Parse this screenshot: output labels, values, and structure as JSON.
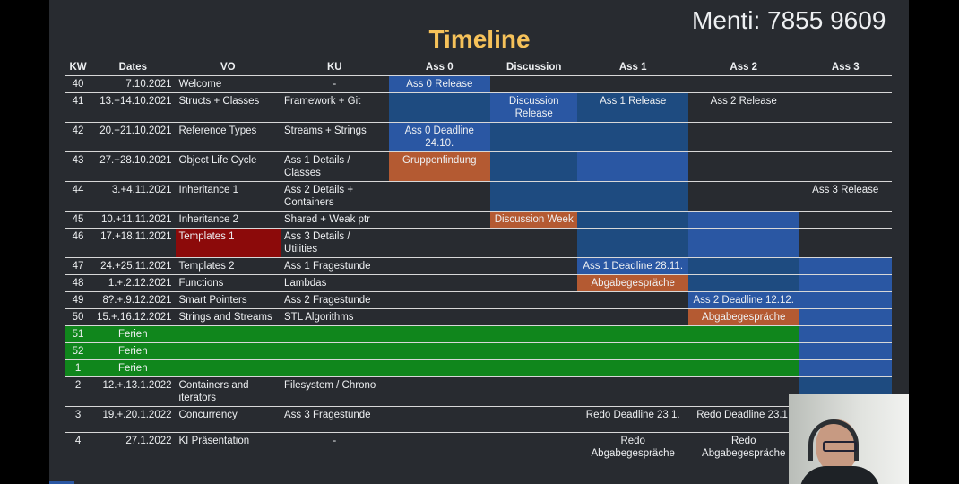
{
  "menti": "Menti: 7855 9609",
  "title": "Timeline",
  "headers": [
    "KW",
    "Dates",
    "VO",
    "KU",
    "Ass 0",
    "Discussion",
    "Ass 1",
    "Ass 2",
    "Ass 3"
  ],
  "rows": [
    {
      "kw": "40",
      "dates": "7.10.2021",
      "vo": "Welcome",
      "ku": "-",
      "ass0": "Ass 0 Release",
      "disc": "",
      "ass1": "",
      "ass2": "",
      "ass3": ""
    },
    {
      "kw": "41",
      "dates": "13.+14.10.2021",
      "vo": "Structs + Classes",
      "ku": "Framework + Git",
      "ass0": "",
      "disc": "Discussion Release",
      "ass1": "Ass 1 Release",
      "ass2": "Ass 2 Release",
      "ass3": ""
    },
    {
      "kw": "42",
      "dates": "20.+21.10.2021",
      "vo": "Reference Types",
      "ku": "Streams + Strings",
      "ass0": "Ass 0 Deadline 24.10.",
      "disc": "",
      "ass1": "",
      "ass2": "",
      "ass3": ""
    },
    {
      "kw": "43",
      "dates": "27.+28.10.2021",
      "vo": "Object Life Cycle",
      "ku": "Ass 1 Details / Classes",
      "ass0": "Gruppenfindung",
      "disc": "",
      "ass1": "",
      "ass2": "",
      "ass3": ""
    },
    {
      "kw": "44",
      "dates": "3.+4.11.2021",
      "vo": "Inheritance 1",
      "ku": "Ass 2 Details + Containers",
      "ass0": "",
      "disc": "",
      "ass1": "",
      "ass2": "",
      "ass3": "Ass 3 Release"
    },
    {
      "kw": "45",
      "dates": "10.+11.11.2021",
      "vo": "Inheritance 2",
      "ku": "Shared + Weak ptr",
      "ass0": "",
      "disc": "Discussion Week",
      "ass1": "",
      "ass2": "",
      "ass3": ""
    },
    {
      "kw": "46",
      "dates": "17.+18.11.2021",
      "vo": "Templates 1",
      "ku": "Ass 3 Details / Utilities",
      "ass0": "",
      "disc": "",
      "ass1": "",
      "ass2": "",
      "ass3": ""
    },
    {
      "kw": "47",
      "dates": "24.+25.11.2021",
      "vo": "Templates 2",
      "ku": "Ass 1 Fragestunde",
      "ass0": "",
      "disc": "",
      "ass1": "Ass 1 Deadline 28.11.",
      "ass2": "",
      "ass3": ""
    },
    {
      "kw": "48",
      "dates": "1.+.2.12.2021",
      "vo": "Functions",
      "ku": "Lambdas",
      "ass0": "",
      "disc": "",
      "ass1": "Abgabegespräche",
      "ass2": "",
      "ass3": ""
    },
    {
      "kw": "49",
      "dates": "8?.+.9.12.2021",
      "vo": "Smart Pointers",
      "ku": "Ass 2 Fragestunde",
      "ass0": "",
      "disc": "",
      "ass1": "",
      "ass2": "Ass 2 Deadline 12.12.",
      "ass3": ""
    },
    {
      "kw": "50",
      "dates": "15.+.16.12.2021",
      "vo": "Strings and Streams",
      "ku": "STL Algorithms",
      "ass0": "",
      "disc": "",
      "ass1": "",
      "ass2": "Abgabegespräche",
      "ass3": ""
    },
    {
      "kw": "51",
      "dates": "Ferien"
    },
    {
      "kw": "52",
      "dates": "Ferien"
    },
    {
      "kw": "1",
      "dates": "Ferien"
    },
    {
      "kw": "2",
      "dates": "12.+.13.1.2022",
      "vo": "Containers and iterators",
      "ku": "Filesystem / Chrono",
      "ass0": "",
      "disc": "",
      "ass1": "",
      "ass2": "",
      "ass3": ""
    },
    {
      "kw": "3",
      "dates": "19.+.20.1.2022",
      "vo": "Concurrency",
      "ku": "Ass 3 Fragestunde",
      "ass0": "",
      "disc": "",
      "ass1": "Redo Deadline 23.1.",
      "ass2": "Redo Deadline 23.1.",
      "ass3": ""
    },
    {
      "kw": "4",
      "dates": "27.1.2022",
      "vo": "KI Präsentation",
      "ku": "-",
      "ass0": "",
      "disc": "",
      "ass1": "Redo Abgabegespräche",
      "ass2": "Redo Abgabegespräche",
      "ass3": ""
    }
  ],
  "colors": {
    "title": "#f6c25a",
    "background": "#282b30",
    "release_blue": "#1e4b80",
    "active_blue": "#2a57a3",
    "orange": "#b45a32",
    "red": "#8c0a0a",
    "holiday_green": "#10861c"
  },
  "webcam": {
    "icon": "presenter-video"
  }
}
